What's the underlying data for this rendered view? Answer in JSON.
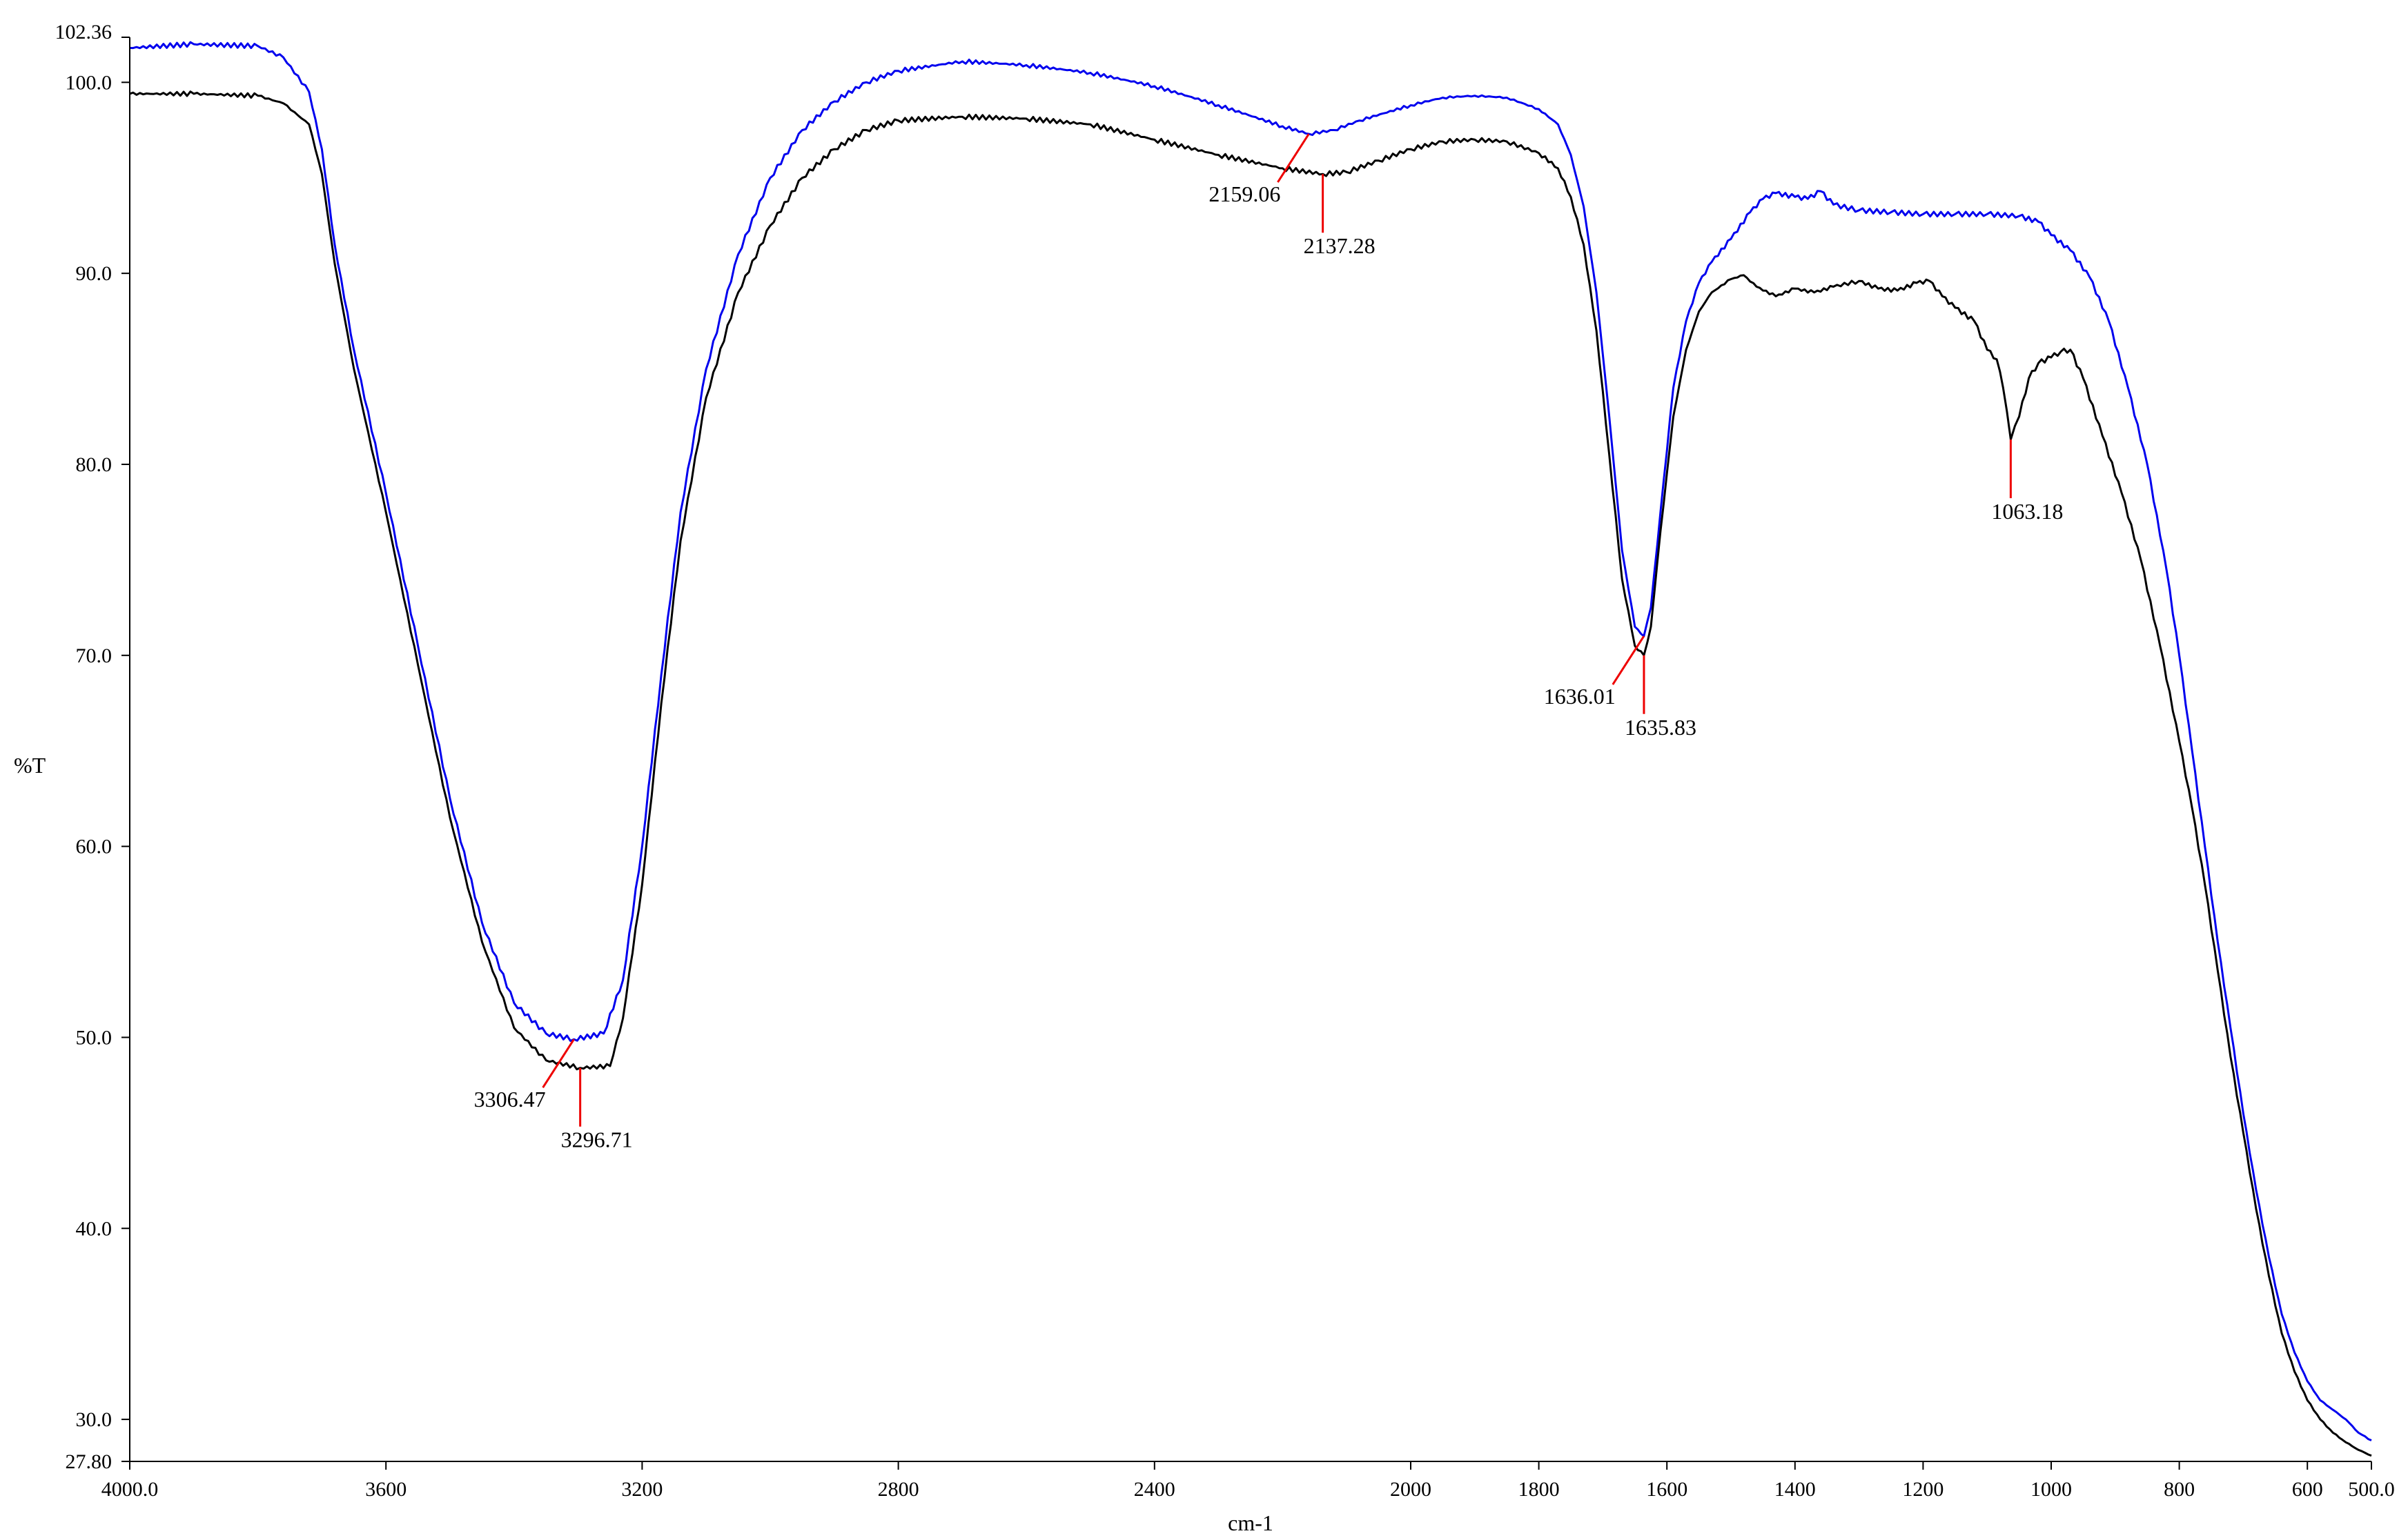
{
  "chart_data": {
    "type": "line",
    "title": "",
    "xlabel": "cm-1",
    "ylabel": "%T",
    "xlim": [
      4000.0,
      500.0
    ],
    "ylim": [
      27.8,
      102.36
    ],
    "x_reversed": true,
    "grid": false,
    "x_ticks": [
      {
        "value": 4000,
        "label": "4000.0"
      },
      {
        "value": 3600,
        "label": "3600"
      },
      {
        "value": 3200,
        "label": "3200"
      },
      {
        "value": 2800,
        "label": "2800"
      },
      {
        "value": 2400,
        "label": "2400"
      },
      {
        "value": 2000,
        "label": "2000"
      },
      {
        "value": 1800,
        "label": "1800"
      },
      {
        "value": 1600,
        "label": "1600"
      },
      {
        "value": 1400,
        "label": "1400"
      },
      {
        "value": 1200,
        "label": "1200"
      },
      {
        "value": 1000,
        "label": "1000"
      },
      {
        "value": 800,
        "label": "800"
      },
      {
        "value": 600,
        "label": "600"
      },
      {
        "value": 500,
        "label": "500.0"
      }
    ],
    "y_ticks": [
      {
        "value": 102.36,
        "label": "102.36"
      },
      {
        "value": 100.0,
        "label": "100.0"
      },
      {
        "value": 90.0,
        "label": "90.0"
      },
      {
        "value": 80.0,
        "label": "80.0"
      },
      {
        "value": 70.0,
        "label": "70.0"
      },
      {
        "value": 60.0,
        "label": "60.0"
      },
      {
        "value": 50.0,
        "label": "50.0"
      },
      {
        "value": 40.0,
        "label": "40.0"
      },
      {
        "value": 30.0,
        "label": "30.0"
      },
      {
        "value": 27.8,
        "label": "27.80"
      }
    ],
    "series": [
      {
        "color": "#0000ee",
        "points": [
          [
            4000,
            101.8
          ],
          [
            3900,
            102.0
          ],
          [
            3800,
            101.9
          ],
          [
            3760,
            101.3
          ],
          [
            3720,
            99.5
          ],
          [
            3700,
            96.5
          ],
          [
            3680,
            91.5
          ],
          [
            3650,
            86.0
          ],
          [
            3600,
            78.5
          ],
          [
            3550,
            70.5
          ],
          [
            3500,
            62.5
          ],
          [
            3450,
            56.0
          ],
          [
            3400,
            51.8
          ],
          [
            3350,
            50.2
          ],
          [
            3306.47,
            49.9
          ],
          [
            3260,
            50.2
          ],
          [
            3230,
            53.0
          ],
          [
            3200,
            60.0
          ],
          [
            3170,
            69.0
          ],
          [
            3140,
            77.5
          ],
          [
            3100,
            85.0
          ],
          [
            3050,
            91.0
          ],
          [
            3000,
            95.0
          ],
          [
            2950,
            97.5
          ],
          [
            2900,
            99.0
          ],
          [
            2850,
            100.0
          ],
          [
            2800,
            100.6
          ],
          [
            2700,
            101.1
          ],
          [
            2600,
            100.9
          ],
          [
            2500,
            100.5
          ],
          [
            2400,
            99.8
          ],
          [
            2300,
            98.8
          ],
          [
            2200,
            97.7
          ],
          [
            2159.06,
            97.3
          ],
          [
            2120,
            97.5
          ],
          [
            2080,
            98.0
          ],
          [
            2000,
            98.8
          ],
          [
            1950,
            99.2
          ],
          [
            1900,
            99.3
          ],
          [
            1850,
            99.2
          ],
          [
            1800,
            98.6
          ],
          [
            1770,
            97.8
          ],
          [
            1750,
            96.2
          ],
          [
            1730,
            93.5
          ],
          [
            1710,
            89.0
          ],
          [
            1690,
            82.5
          ],
          [
            1670,
            75.5
          ],
          [
            1650,
            71.5
          ],
          [
            1636.01,
            71.0
          ],
          [
            1625,
            72.5
          ],
          [
            1610,
            77.5
          ],
          [
            1590,
            84.0
          ],
          [
            1570,
            87.5
          ],
          [
            1550,
            89.5
          ],
          [
            1530,
            90.6
          ],
          [
            1500,
            91.8
          ],
          [
            1470,
            93.2
          ],
          [
            1450,
            93.9
          ],
          [
            1430,
            94.2
          ],
          [
            1400,
            94.0
          ],
          [
            1380,
            93.9
          ],
          [
            1360,
            94.3
          ],
          [
            1340,
            93.6
          ],
          [
            1300,
            93.3
          ],
          [
            1250,
            93.2
          ],
          [
            1200,
            93.1
          ],
          [
            1150,
            93.1
          ],
          [
            1100,
            93.1
          ],
          [
            1050,
            93.0
          ],
          [
            1020,
            92.7
          ],
          [
            1000,
            92.0
          ],
          [
            970,
            91.2
          ],
          [
            940,
            89.8
          ],
          [
            910,
            87.5
          ],
          [
            880,
            84.0
          ],
          [
            850,
            80.0
          ],
          [
            820,
            74.5
          ],
          [
            800,
            70.0
          ],
          [
            780,
            65.0
          ],
          [
            760,
            60.0
          ],
          [
            740,
            55.0
          ],
          [
            720,
            50.5
          ],
          [
            700,
            46.0
          ],
          [
            680,
            42.0
          ],
          [
            660,
            38.5
          ],
          [
            640,
            35.5
          ],
          [
            620,
            33.5
          ],
          [
            600,
            32.0
          ],
          [
            580,
            31.0
          ],
          [
            560,
            30.5
          ],
          [
            540,
            30.0
          ],
          [
            520,
            29.3
          ],
          [
            500,
            28.9
          ]
        ]
      },
      {
        "color": "#000000",
        "points": [
          [
            4000,
            99.4
          ],
          [
            3900,
            99.4
          ],
          [
            3800,
            99.3
          ],
          [
            3760,
            98.9
          ],
          [
            3720,
            97.8
          ],
          [
            3700,
            95.2
          ],
          [
            3680,
            90.5
          ],
          [
            3650,
            85.0
          ],
          [
            3600,
            77.5
          ],
          [
            3550,
            69.5
          ],
          [
            3500,
            61.5
          ],
          [
            3450,
            55.0
          ],
          [
            3400,
            50.5
          ],
          [
            3350,
            48.8
          ],
          [
            3296.71,
            48.4
          ],
          [
            3250,
            48.5
          ],
          [
            3230,
            51.0
          ],
          [
            3200,
            58.0
          ],
          [
            3170,
            67.5
          ],
          [
            3140,
            76.0
          ],
          [
            3100,
            83.5
          ],
          [
            3050,
            89.0
          ],
          [
            3000,
            92.5
          ],
          [
            2950,
            95.0
          ],
          [
            2900,
            96.5
          ],
          [
            2850,
            97.5
          ],
          [
            2800,
            98.0
          ],
          [
            2700,
            98.2
          ],
          [
            2600,
            98.1
          ],
          [
            2500,
            97.8
          ],
          [
            2400,
            97.0
          ],
          [
            2300,
            96.2
          ],
          [
            2200,
            95.5
          ],
          [
            2137.28,
            95.2
          ],
          [
            2100,
            95.3
          ],
          [
            2050,
            95.9
          ],
          [
            2000,
            96.5
          ],
          [
            1950,
            96.9
          ],
          [
            1900,
            97.0
          ],
          [
            1850,
            96.9
          ],
          [
            1800,
            96.3
          ],
          [
            1770,
            95.5
          ],
          [
            1750,
            94.0
          ],
          [
            1730,
            91.5
          ],
          [
            1710,
            87.0
          ],
          [
            1690,
            80.5
          ],
          [
            1670,
            74.0
          ],
          [
            1650,
            70.5
          ],
          [
            1635.83,
            70.0
          ],
          [
            1625,
            71.5
          ],
          [
            1610,
            76.5
          ],
          [
            1590,
            82.5
          ],
          [
            1570,
            86.0
          ],
          [
            1550,
            88.0
          ],
          [
            1530,
            89.0
          ],
          [
            1500,
            89.7
          ],
          [
            1480,
            89.9
          ],
          [
            1460,
            89.3
          ],
          [
            1430,
            88.8
          ],
          [
            1400,
            89.2
          ],
          [
            1370,
            89.0
          ],
          [
            1340,
            89.3
          ],
          [
            1300,
            89.6
          ],
          [
            1270,
            89.2
          ],
          [
            1240,
            89.1
          ],
          [
            1210,
            89.5
          ],
          [
            1190,
            89.6
          ],
          [
            1170,
            88.8
          ],
          [
            1150,
            88.2
          ],
          [
            1120,
            87.5
          ],
          [
            1100,
            86.0
          ],
          [
            1085,
            85.5
          ],
          [
            1075,
            84.0
          ],
          [
            1063.18,
            81.3
          ],
          [
            1050,
            82.5
          ],
          [
            1035,
            84.5
          ],
          [
            1020,
            85.3
          ],
          [
            1000,
            85.6
          ],
          [
            985,
            85.9
          ],
          [
            970,
            86.0
          ],
          [
            950,
            84.5
          ],
          [
            920,
            81.5
          ],
          [
            890,
            78.5
          ],
          [
            860,
            75.0
          ],
          [
            830,
            70.5
          ],
          [
            800,
            65.5
          ],
          [
            780,
            62.0
          ],
          [
            760,
            58.0
          ],
          [
            740,
            53.5
          ],
          [
            720,
            49.0
          ],
          [
            700,
            45.0
          ],
          [
            680,
            41.0
          ],
          [
            660,
            37.5
          ],
          [
            640,
            34.5
          ],
          [
            620,
            32.5
          ],
          [
            600,
            31.0
          ],
          [
            580,
            30.0
          ],
          [
            560,
            29.3
          ],
          [
            540,
            28.8
          ],
          [
            520,
            28.4
          ],
          [
            500,
            28.1
          ]
        ]
      }
    ],
    "annotations": [
      {
        "text": "3306.47",
        "x": 3306.47,
        "y": 49.9,
        "anchor": "left"
      },
      {
        "text": "3296.71",
        "x": 3296.71,
        "y": 48.4,
        "anchor": "below"
      },
      {
        "text": "2159.06",
        "x": 2159.06,
        "y": 97.3,
        "anchor": "left"
      },
      {
        "text": "2137.28",
        "x": 2137.28,
        "y": 95.2,
        "anchor": "below"
      },
      {
        "text": "1636.01",
        "x": 1636.01,
        "y": 71.0,
        "anchor": "left"
      },
      {
        "text": "1635.83",
        "x": 1635.83,
        "y": 70.0,
        "anchor": "below"
      },
      {
        "text": "1063.18",
        "x": 1063.18,
        "y": 81.3,
        "anchor": "below"
      }
    ]
  }
}
